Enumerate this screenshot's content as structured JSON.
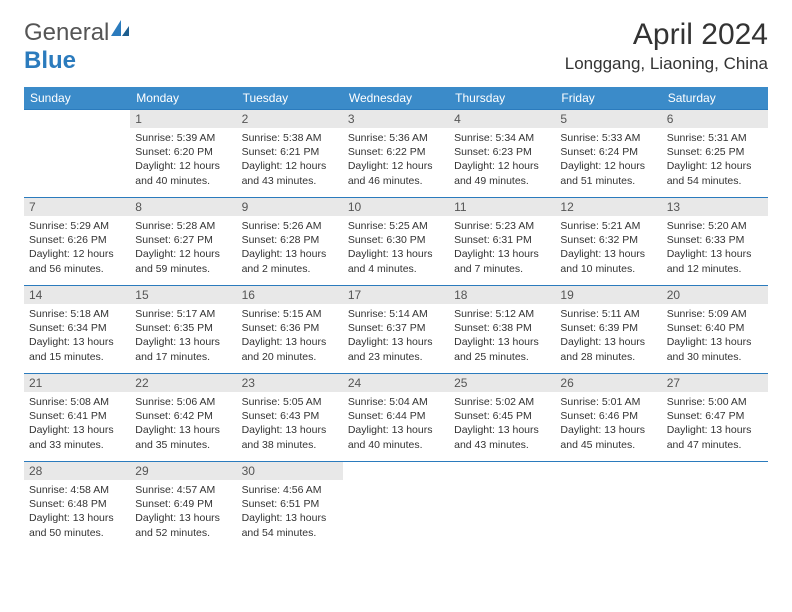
{
  "logo": {
    "text1": "General",
    "text2": "Blue"
  },
  "title": "April 2024",
  "location": "Longgang, Liaoning, China",
  "colors": {
    "header_bg": "#3b8bc9",
    "header_text": "#ffffff",
    "row_border": "#2b7bbd",
    "daynum_bg": "#e8e8e8",
    "logo_blue": "#2b7bbd"
  },
  "weekdays": [
    "Sunday",
    "Monday",
    "Tuesday",
    "Wednesday",
    "Thursday",
    "Friday",
    "Saturday"
  ],
  "weeks": [
    [
      null,
      {
        "n": "1",
        "sr": "5:39 AM",
        "ss": "6:20 PM",
        "dl": "12 hours and 40 minutes."
      },
      {
        "n": "2",
        "sr": "5:38 AM",
        "ss": "6:21 PM",
        "dl": "12 hours and 43 minutes."
      },
      {
        "n": "3",
        "sr": "5:36 AM",
        "ss": "6:22 PM",
        "dl": "12 hours and 46 minutes."
      },
      {
        "n": "4",
        "sr": "5:34 AM",
        "ss": "6:23 PM",
        "dl": "12 hours and 49 minutes."
      },
      {
        "n": "5",
        "sr": "5:33 AM",
        "ss": "6:24 PM",
        "dl": "12 hours and 51 minutes."
      },
      {
        "n": "6",
        "sr": "5:31 AM",
        "ss": "6:25 PM",
        "dl": "12 hours and 54 minutes."
      }
    ],
    [
      {
        "n": "7",
        "sr": "5:29 AM",
        "ss": "6:26 PM",
        "dl": "12 hours and 56 minutes."
      },
      {
        "n": "8",
        "sr": "5:28 AM",
        "ss": "6:27 PM",
        "dl": "12 hours and 59 minutes."
      },
      {
        "n": "9",
        "sr": "5:26 AM",
        "ss": "6:28 PM",
        "dl": "13 hours and 2 minutes."
      },
      {
        "n": "10",
        "sr": "5:25 AM",
        "ss": "6:30 PM",
        "dl": "13 hours and 4 minutes."
      },
      {
        "n": "11",
        "sr": "5:23 AM",
        "ss": "6:31 PM",
        "dl": "13 hours and 7 minutes."
      },
      {
        "n": "12",
        "sr": "5:21 AM",
        "ss": "6:32 PM",
        "dl": "13 hours and 10 minutes."
      },
      {
        "n": "13",
        "sr": "5:20 AM",
        "ss": "6:33 PM",
        "dl": "13 hours and 12 minutes."
      }
    ],
    [
      {
        "n": "14",
        "sr": "5:18 AM",
        "ss": "6:34 PM",
        "dl": "13 hours and 15 minutes."
      },
      {
        "n": "15",
        "sr": "5:17 AM",
        "ss": "6:35 PM",
        "dl": "13 hours and 17 minutes."
      },
      {
        "n": "16",
        "sr": "5:15 AM",
        "ss": "6:36 PM",
        "dl": "13 hours and 20 minutes."
      },
      {
        "n": "17",
        "sr": "5:14 AM",
        "ss": "6:37 PM",
        "dl": "13 hours and 23 minutes."
      },
      {
        "n": "18",
        "sr": "5:12 AM",
        "ss": "6:38 PM",
        "dl": "13 hours and 25 minutes."
      },
      {
        "n": "19",
        "sr": "5:11 AM",
        "ss": "6:39 PM",
        "dl": "13 hours and 28 minutes."
      },
      {
        "n": "20",
        "sr": "5:09 AM",
        "ss": "6:40 PM",
        "dl": "13 hours and 30 minutes."
      }
    ],
    [
      {
        "n": "21",
        "sr": "5:08 AM",
        "ss": "6:41 PM",
        "dl": "13 hours and 33 minutes."
      },
      {
        "n": "22",
        "sr": "5:06 AM",
        "ss": "6:42 PM",
        "dl": "13 hours and 35 minutes."
      },
      {
        "n": "23",
        "sr": "5:05 AM",
        "ss": "6:43 PM",
        "dl": "13 hours and 38 minutes."
      },
      {
        "n": "24",
        "sr": "5:04 AM",
        "ss": "6:44 PM",
        "dl": "13 hours and 40 minutes."
      },
      {
        "n": "25",
        "sr": "5:02 AM",
        "ss": "6:45 PM",
        "dl": "13 hours and 43 minutes."
      },
      {
        "n": "26",
        "sr": "5:01 AM",
        "ss": "6:46 PM",
        "dl": "13 hours and 45 minutes."
      },
      {
        "n": "27",
        "sr": "5:00 AM",
        "ss": "6:47 PM",
        "dl": "13 hours and 47 minutes."
      }
    ],
    [
      {
        "n": "28",
        "sr": "4:58 AM",
        "ss": "6:48 PM",
        "dl": "13 hours and 50 minutes."
      },
      {
        "n": "29",
        "sr": "4:57 AM",
        "ss": "6:49 PM",
        "dl": "13 hours and 52 minutes."
      },
      {
        "n": "30",
        "sr": "4:56 AM",
        "ss": "6:51 PM",
        "dl": "13 hours and 54 minutes."
      },
      null,
      null,
      null,
      null
    ]
  ],
  "labels": {
    "sunrise": "Sunrise:",
    "sunset": "Sunset:",
    "daylight": "Daylight:"
  }
}
